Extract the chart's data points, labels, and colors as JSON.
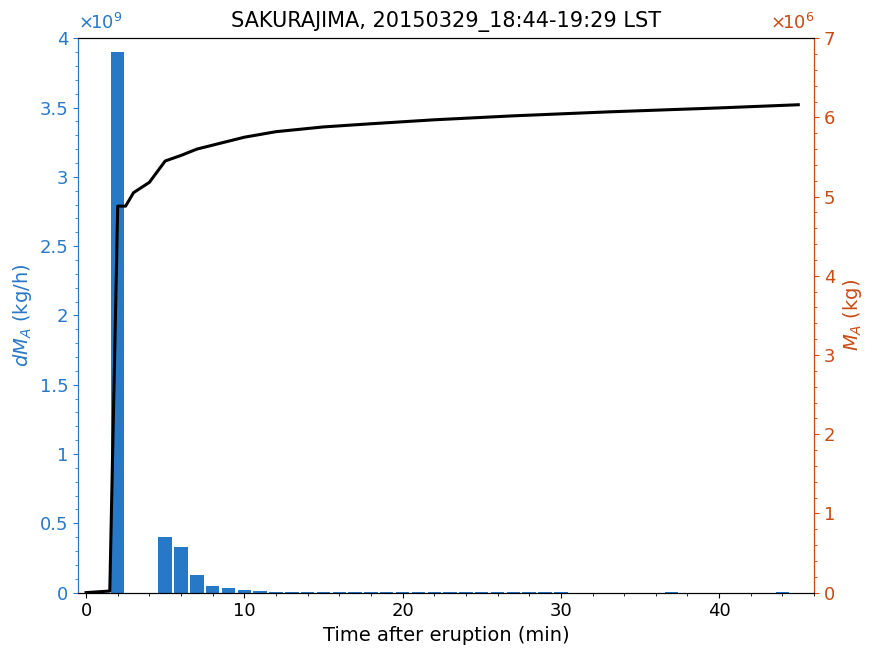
{
  "title": "SAKURAJIMA, 20150329_18:44-19:29 LST",
  "xlabel": "Time after eruption (min)",
  "ylabel_left": "dM_A (kg/h)",
  "ylabel_right": "M_A (kg)",
  "bar_color": "#2878C8",
  "line_color": "#000000",
  "left_axis_color": "#2878C8",
  "right_axis_color": "#C84B14",
  "bar_centers": [
    1,
    2,
    3,
    4,
    5,
    6,
    7,
    8,
    9,
    10,
    11,
    12,
    13,
    14,
    15,
    16,
    17,
    18,
    19,
    20,
    21,
    22,
    23,
    24,
    25,
    26,
    27,
    28,
    29,
    30,
    31,
    32,
    33,
    34,
    35,
    36,
    37,
    38,
    39,
    40,
    41,
    42,
    43,
    44,
    45
  ],
  "bar_heights": [
    0.0,
    3900000000.0,
    0.0,
    0.0,
    400000000.0,
    330000000.0,
    130000000.0,
    50000000.0,
    30000000.0,
    20000000.0,
    10000000.0,
    5000000.0,
    3000000.0,
    3000000.0,
    2000000.0,
    2000000.0,
    1000000.0,
    1000000.0,
    1000000.0,
    1000000.0,
    1000000.0,
    1000000.0,
    1000000.0,
    1000000.0,
    1000000.0,
    1000000.0,
    1000000.0,
    1000000.0,
    1000000.0,
    1000000.0,
    0.0,
    0.0,
    0.0,
    0.0,
    0.0,
    0.0,
    2000000.0,
    0.0,
    0.0,
    0.0,
    0.0,
    0.0,
    0.0,
    2000000.0,
    0.0
  ],
  "line_x": [
    0,
    1.5,
    2.0,
    2.5,
    3.0,
    4.0,
    5.0,
    6.0,
    7.0,
    8.0,
    9.0,
    10.0,
    12.0,
    15.0,
    18.0,
    22.0,
    27.0,
    33.0,
    40.0,
    45.0
  ],
  "line_y": [
    0,
    20000.0,
    4880000.0,
    4880000.0,
    5050000.0,
    5180000.0,
    5450000.0,
    5520000.0,
    5600000.0,
    5650000.0,
    5700000.0,
    5750000.0,
    5820000.0,
    5880000.0,
    5920000.0,
    5970000.0,
    6020000.0,
    6070000.0,
    6120000.0,
    6160000.0
  ],
  "xlim": [
    -0.5,
    46
  ],
  "ylim_left": [
    0,
    4000000000.0
  ],
  "ylim_right": [
    0,
    7000000.0
  ],
  "xticks": [
    0,
    10,
    20,
    30,
    40
  ],
  "yticks_left": [
    0,
    500000000.0,
    1000000000.0,
    1500000000.0,
    2000000000.0,
    2500000000.0,
    3000000000.0,
    3500000000.0,
    4000000000.0
  ],
  "yticklabels_left": [
    "0",
    "0.5",
    "1",
    "1.5",
    "2",
    "2.5",
    "3",
    "3.5",
    "4"
  ],
  "yticks_right": [
    0,
    1000000.0,
    2000000.0,
    3000000.0,
    4000000.0,
    5000000.0,
    6000000.0,
    7000000.0
  ],
  "yticklabels_right": [
    "0",
    "1",
    "2",
    "3",
    "4",
    "5",
    "6",
    "7"
  ],
  "bar_width": 0.85,
  "title_fontsize": 15,
  "label_fontsize": 14,
  "tick_fontsize": 13,
  "exponent_fontsize": 13,
  "line_width": 2.2,
  "bg_color": "#ffffff"
}
